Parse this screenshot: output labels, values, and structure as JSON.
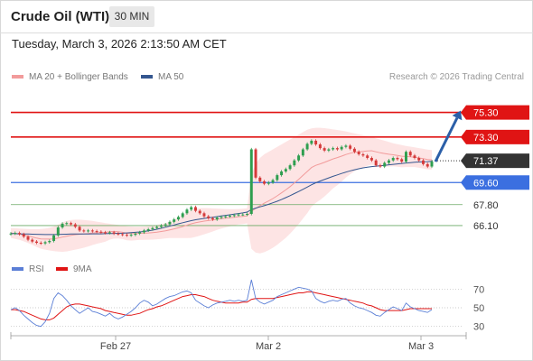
{
  "header": {
    "instrument": "Crude Oil (WTI)",
    "timeframe": "30 MIN",
    "timestamp": "Tuesday, March 3, 2026 2:13:50 AM CET"
  },
  "legend": {
    "ma20_bb": "MA 20 + Bollinger Bands",
    "ma50": "MA 50",
    "credit": "Research © 2026 Trading Central",
    "rsi": "RSI",
    "ma9": "9MA"
  },
  "colors": {
    "bull": "#2e9e4f",
    "bear": "#d43a3a",
    "resistance": "#e01414",
    "pivot": "#3b6fe0",
    "support": "#6aaa64",
    "bollinger_fill": "#fde4e4",
    "ma20": "#f29b9b",
    "ma50": "#34568f",
    "rsi": "#5b7fd6",
    "rsi_ma": "#e01414",
    "arrow": "#2b5fa8",
    "last_price_bg": "#333333"
  },
  "chart_data": [
    {
      "type": "candlestick",
      "x_tick_labels": [
        "Feb 27",
        "Mar 2",
        "Mar 3"
      ],
      "y_range": [
        63.6,
        77.4
      ],
      "levels": [
        {
          "price": 75.3,
          "label": "75.30",
          "kind": "resistance"
        },
        {
          "price": 73.3,
          "label": "73.30",
          "kind": "resistance"
        },
        {
          "price": 71.37,
          "label": "71.37",
          "kind": "last"
        },
        {
          "price": 69.6,
          "label": "69.60",
          "kind": "pivot"
        },
        {
          "price": 67.8,
          "label": "67.80",
          "kind": "support"
        },
        {
          "price": 66.1,
          "label": "66.10",
          "kind": "support"
        }
      ],
      "forecast_arrow": {
        "from": 71.3,
        "to": 75.3
      },
      "close": [
        65.45,
        65.5,
        65.4,
        65.2,
        64.95,
        64.8,
        64.7,
        64.65,
        64.75,
        64.85,
        65.3,
        65.95,
        66.25,
        66.3,
        66.2,
        66.0,
        65.7,
        65.65,
        65.7,
        65.65,
        65.6,
        65.55,
        65.5,
        65.55,
        65.45,
        65.4,
        65.35,
        65.3,
        65.35,
        65.45,
        65.55,
        65.7,
        65.8,
        65.9,
        66.0,
        66.1,
        66.2,
        66.4,
        66.6,
        66.8,
        67.1,
        67.4,
        67.6,
        67.3,
        67.1,
        66.85,
        66.7,
        66.6,
        66.75,
        66.8,
        66.85,
        66.9,
        66.95,
        67.0,
        67.0,
        67.05,
        72.3,
        70.0,
        69.7,
        69.5,
        69.6,
        69.8,
        70.2,
        70.5,
        70.7,
        71.0,
        71.4,
        71.8,
        72.3,
        72.75,
        73.0,
        72.7,
        72.4,
        72.2,
        72.3,
        72.4,
        72.3,
        72.5,
        72.6,
        72.35,
        72.1,
        71.9,
        71.8,
        71.6,
        71.4,
        71.0,
        70.9,
        71.2,
        71.4,
        71.6,
        71.5,
        71.3,
        72.1,
        71.8,
        71.6,
        71.4,
        71.1,
        70.9,
        71.3
      ],
      "ma20": [
        65.5,
        65.45,
        65.4,
        65.33,
        65.25,
        65.17,
        65.08,
        65.02,
        65.0,
        65.0,
        65.02,
        65.08,
        65.16,
        65.24,
        65.31,
        65.36,
        65.4,
        65.43,
        65.46,
        65.5,
        65.52,
        65.53,
        65.55,
        65.6,
        65.62,
        65.6,
        65.55,
        65.48,
        65.45,
        65.45,
        65.47,
        65.48,
        65.5,
        65.53,
        65.57,
        65.62,
        65.68,
        65.75,
        65.83,
        65.92,
        66.02,
        66.13,
        66.24,
        66.33,
        66.4,
        66.46,
        66.51,
        66.56,
        66.61,
        66.66,
        66.7,
        66.74,
        66.78,
        66.82,
        66.85,
        66.89,
        67.25,
        67.5,
        67.72,
        67.92,
        68.1,
        68.3,
        68.52,
        68.76,
        69.0,
        69.27,
        69.56,
        69.86,
        70.18,
        70.5,
        70.82,
        71.0,
        71.12,
        71.24,
        71.38,
        71.52,
        71.63,
        71.75,
        71.88,
        71.98,
        72.06,
        72.1,
        72.14,
        72.17,
        72.19,
        72.1,
        72.02,
        71.96,
        71.9,
        71.86,
        71.8,
        71.74,
        71.72,
        71.69,
        71.66,
        71.6,
        71.54,
        71.47,
        71.45
      ],
      "bb_upper": [
        65.9,
        65.88,
        65.86,
        65.84,
        65.82,
        65.8,
        65.8,
        65.82,
        65.86,
        65.92,
        66.02,
        66.18,
        66.35,
        66.48,
        66.55,
        66.58,
        66.58,
        66.56,
        66.52,
        66.48,
        66.42,
        66.36,
        66.3,
        66.25,
        66.2,
        66.15,
        66.1,
        66.05,
        66.02,
        66.0,
        66.0,
        66.02,
        66.05,
        66.1,
        66.15,
        66.22,
        66.3,
        66.42,
        66.58,
        66.76,
        66.96,
        67.18,
        67.38,
        67.48,
        67.52,
        67.53,
        67.52,
        67.5,
        67.48,
        67.46,
        67.45,
        67.44,
        67.44,
        67.45,
        67.47,
        67.5,
        70.3,
        71.1,
        71.6,
        71.9,
        72.1,
        72.3,
        72.5,
        72.7,
        72.9,
        73.1,
        73.3,
        73.5,
        73.7,
        73.9,
        74.0,
        74.05,
        74.05,
        74.02,
        73.98,
        73.92,
        73.88,
        73.82,
        73.76,
        73.68,
        73.6,
        73.52,
        73.45,
        73.38,
        73.32,
        73.2,
        73.1,
        73.0,
        72.9,
        72.8,
        72.72,
        72.64,
        72.58,
        72.52,
        72.46,
        72.4,
        72.34,
        72.28,
        72.24
      ],
      "bb_lower": [
        65.1,
        65.02,
        64.94,
        64.82,
        64.68,
        64.54,
        64.36,
        64.22,
        64.14,
        64.08,
        64.02,
        63.98,
        63.97,
        64.0,
        64.07,
        64.14,
        64.22,
        64.3,
        64.4,
        64.52,
        64.62,
        64.7,
        64.8,
        64.95,
        65.04,
        65.05,
        65.0,
        64.91,
        64.88,
        64.9,
        64.94,
        64.94,
        64.95,
        64.96,
        64.99,
        65.02,
        65.06,
        65.08,
        65.08,
        65.08,
        65.08,
        65.08,
        65.1,
        65.18,
        65.28,
        65.39,
        65.5,
        65.62,
        65.74,
        65.86,
        65.95,
        66.04,
        66.12,
        66.19,
        66.23,
        66.28,
        64.2,
        63.9,
        63.84,
        63.94,
        64.1,
        64.3,
        64.54,
        64.82,
        65.1,
        65.44,
        65.82,
        66.22,
        66.66,
        67.1,
        67.64,
        67.95,
        68.19,
        68.46,
        68.78,
        69.12,
        69.38,
        69.68,
        70.0,
        70.28,
        70.52,
        70.68,
        70.83,
        70.96,
        71.06,
        71.0,
        70.94,
        70.92,
        70.9,
        70.92,
        70.88,
        70.84,
        70.86,
        70.86,
        70.86,
        70.8,
        70.74,
        70.66,
        70.66
      ],
      "ma50": [
        65.45,
        65.44,
        65.43,
        65.42,
        65.41,
        65.4,
        65.39,
        65.38,
        65.37,
        65.37,
        65.37,
        65.38,
        65.39,
        65.4,
        65.41,
        65.42,
        65.42,
        65.42,
        65.42,
        65.43,
        65.43,
        65.43,
        65.44,
        65.45,
        65.46,
        65.47,
        65.48,
        65.5,
        65.52,
        65.55,
        65.58,
        65.62,
        65.67,
        65.73,
        65.8,
        65.88,
        65.97,
        66.06,
        66.15,
        66.24,
        66.33,
        66.42,
        66.5,
        66.57,
        66.63,
        66.68,
        66.73,
        66.78,
        66.83,
        66.88,
        66.93,
        66.98,
        67.03,
        67.08,
        67.13,
        67.2,
        67.4,
        67.52,
        67.62,
        67.72,
        67.83,
        67.95,
        68.08,
        68.22,
        68.37,
        68.53,
        68.7,
        68.87,
        69.05,
        69.23,
        69.42,
        69.58,
        69.72,
        69.85,
        69.98,
        70.1,
        70.22,
        70.34,
        70.45,
        70.55,
        70.64,
        70.72,
        70.79,
        70.85,
        70.9,
        70.93,
        70.96,
        71.0,
        71.04,
        71.08,
        71.12,
        71.15,
        71.19,
        71.22,
        71.25,
        71.27,
        71.29,
        71.3,
        71.32
      ]
    },
    {
      "type": "line",
      "name": "RSI",
      "y_range": [
        20,
        80
      ],
      "ticks": [
        30,
        50,
        70
      ],
      "rsi": [
        48,
        50,
        47,
        42,
        38,
        34,
        31,
        30,
        35,
        44,
        60,
        66,
        63,
        58,
        52,
        48,
        44,
        47,
        50,
        46,
        45,
        43,
        41,
        44,
        40,
        38,
        40,
        43,
        46,
        50,
        55,
        58,
        56,
        52,
        54,
        57,
        60,
        62,
        63,
        65,
        67,
        68,
        66,
        58,
        55,
        52,
        50,
        53,
        55,
        56,
        57,
        58,
        57,
        58,
        57,
        58,
        80,
        60,
        56,
        54,
        56,
        58,
        62,
        64,
        66,
        68,
        70,
        72,
        71,
        70,
        68,
        60,
        57,
        55,
        57,
        58,
        57,
        59,
        60,
        55,
        52,
        50,
        49,
        47,
        45,
        42,
        41,
        45,
        48,
        51,
        49,
        47,
        55,
        51,
        49,
        47,
        46,
        45,
        48
      ],
      "ma9": [
        48,
        48,
        47,
        46,
        44,
        42,
        40,
        38,
        37,
        37,
        39,
        43,
        47,
        51,
        53,
        54,
        54,
        53,
        52,
        51,
        50,
        49,
        47,
        46,
        45,
        44,
        43,
        42,
        42,
        43,
        44,
        46,
        48,
        49,
        51,
        52,
        54,
        56,
        58,
        60,
        62,
        63,
        64,
        64,
        63,
        62,
        60,
        58,
        57,
        56,
        55,
        55,
        55,
        55,
        56,
        56,
        59,
        60,
        60,
        60,
        60,
        60,
        61,
        62,
        63,
        64,
        65,
        66,
        66,
        67,
        67,
        66,
        65,
        64,
        63,
        62,
        61,
        60,
        59,
        58,
        57,
        56,
        55,
        53,
        52,
        50,
        48,
        47,
        47,
        47,
        47,
        47,
        48,
        49,
        49,
        49,
        49,
        49,
        49
      ]
    }
  ]
}
